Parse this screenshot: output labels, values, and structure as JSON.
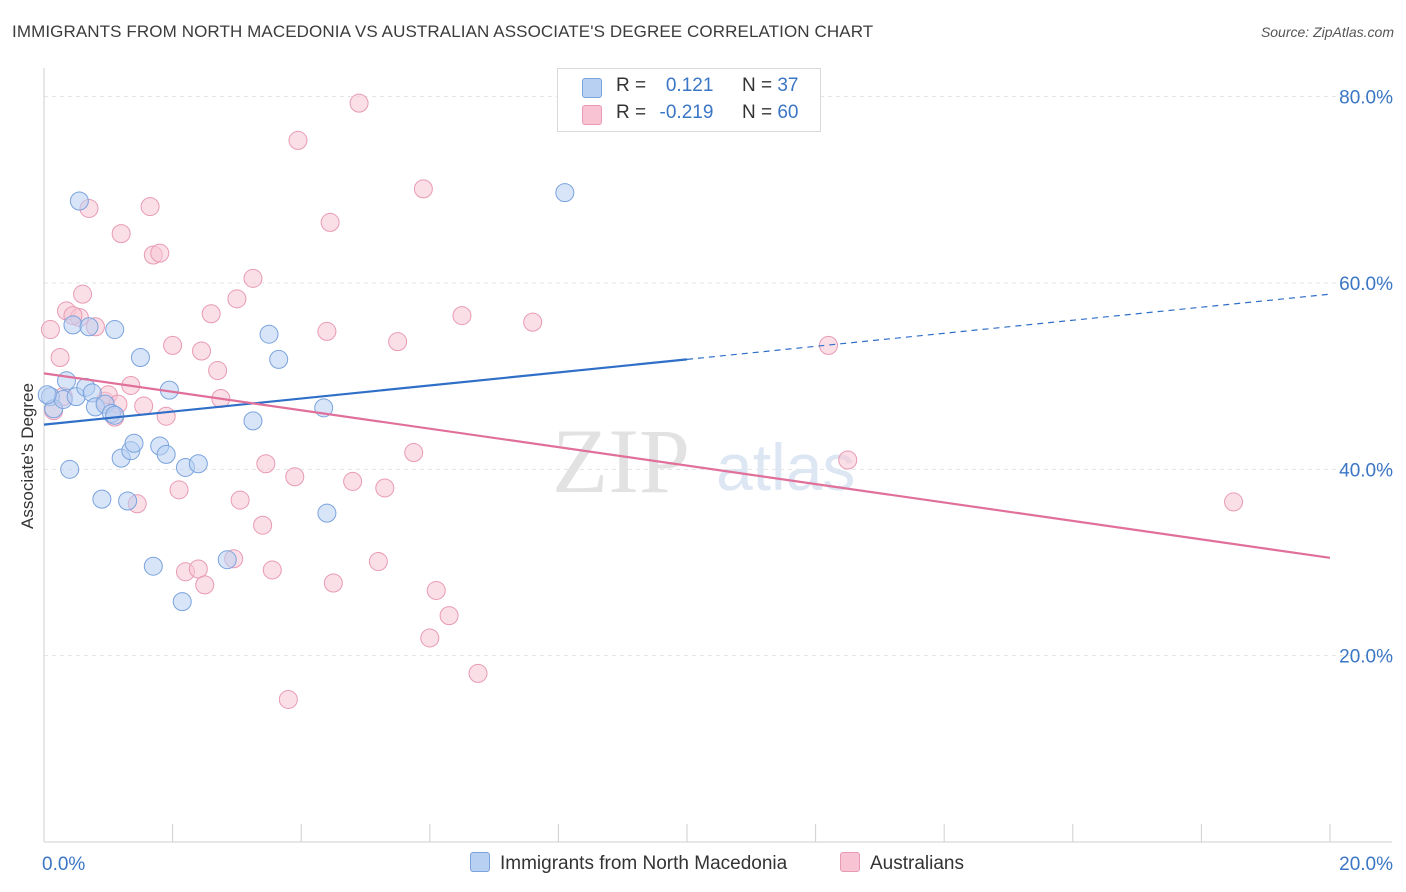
{
  "header": {
    "title": "IMMIGRANTS FROM NORTH MACEDONIA VS AUSTRALIAN ASSOCIATE'S DEGREE CORRELATION CHART",
    "source": "Source: ZipAtlas.com"
  },
  "watermark": {
    "zip": "ZIP",
    "atlas": "atlas"
  },
  "legend": {
    "r_label": "R =",
    "n_label": "N =",
    "rows": [
      {
        "r": "0.121",
        "n": "37",
        "color": "#b8d0f2",
        "border": "#7aa3dd"
      },
      {
        "r": "-0.219",
        "n": "60",
        "color": "#f8c4d4",
        "border": "#e89ab4"
      }
    ]
  },
  "chart_data": {
    "type": "scatter",
    "title": "IMMIGRANTS FROM NORTH MACEDONIA VS AUSTRALIAN ASSOCIATE'S DEGREE CORRELATION CHART",
    "xlabel": "",
    "ylabel": "Associate's Degree",
    "xlim": [
      0,
      20
    ],
    "ylim": [
      0,
      82
    ],
    "x_tick_labels": [
      {
        "value": 0,
        "label": "0.0%"
      },
      {
        "value": 20,
        "label": "20.0%"
      }
    ],
    "y_tick_labels": [
      {
        "value": 20,
        "label": "20.0%"
      },
      {
        "value": 40,
        "label": "40.0%"
      },
      {
        "value": 60,
        "label": "60.0%"
      },
      {
        "value": 80,
        "label": "80.0%"
      }
    ],
    "grid": true,
    "legend_position": "bottom-center",
    "series": [
      {
        "name": "Immigrants from North Macedonia",
        "color": "#7aa3dd",
        "fill": "#b8d0f2",
        "line_color": "#2f6fc8",
        "trend": {
          "x0": 0,
          "y0": 44.8,
          "x1": 10,
          "y1": 51.8,
          "x_dash_end": 20,
          "y_dash_end": 58.8
        },
        "points": [
          {
            "x": 0.1,
            "y": 47.8
          },
          {
            "x": 0.15,
            "y": 46.5
          },
          {
            "x": 0.3,
            "y": 47.5
          },
          {
            "x": 0.35,
            "y": 49.5
          },
          {
            "x": 0.4,
            "y": 40.0
          },
          {
            "x": 0.45,
            "y": 55.5
          },
          {
            "x": 0.5,
            "y": 47.8
          },
          {
            "x": 0.55,
            "y": 68.8
          },
          {
            "x": 0.65,
            "y": 48.8
          },
          {
            "x": 0.7,
            "y": 55.3
          },
          {
            "x": 0.75,
            "y": 48.2
          },
          {
            "x": 0.8,
            "y": 46.7
          },
          {
            "x": 0.9,
            "y": 36.8
          },
          {
            "x": 0.95,
            "y": 47.0
          },
          {
            "x": 1.05,
            "y": 46.0
          },
          {
            "x": 1.1,
            "y": 45.8
          },
          {
            "x": 1.1,
            "y": 55.0
          },
          {
            "x": 1.2,
            "y": 41.2
          },
          {
            "x": 1.3,
            "y": 36.6
          },
          {
            "x": 1.35,
            "y": 42.0
          },
          {
            "x": 1.4,
            "y": 42.8
          },
          {
            "x": 1.5,
            "y": 52.0
          },
          {
            "x": 1.7,
            "y": 29.6
          },
          {
            "x": 1.8,
            "y": 42.5
          },
          {
            "x": 1.9,
            "y": 41.6
          },
          {
            "x": 1.95,
            "y": 48.5
          },
          {
            "x": 2.15,
            "y": 25.8
          },
          {
            "x": 2.2,
            "y": 40.2
          },
          {
            "x": 2.4,
            "y": 40.6
          },
          {
            "x": 2.85,
            "y": 30.3
          },
          {
            "x": 3.25,
            "y": 45.2
          },
          {
            "x": 3.5,
            "y": 54.5
          },
          {
            "x": 3.65,
            "y": 51.8
          },
          {
            "x": 4.35,
            "y": 46.6
          },
          {
            "x": 4.4,
            "y": 35.3
          },
          {
            "x": 8.1,
            "y": 69.7
          },
          {
            "x": 0.05,
            "y": 48.0
          }
        ]
      },
      {
        "name": "Australians",
        "color": "#e89ab4",
        "fill": "#f8c4d4",
        "line_color": "#e0709a",
        "trend": {
          "x0": 0,
          "y0": 50.3,
          "x1": 20,
          "y1": 30.5
        },
        "points": [
          {
            "x": 0.1,
            "y": 55.0
          },
          {
            "x": 0.15,
            "y": 46.3
          },
          {
            "x": 0.25,
            "y": 52.0
          },
          {
            "x": 0.3,
            "y": 47.8
          },
          {
            "x": 0.35,
            "y": 57.0
          },
          {
            "x": 0.55,
            "y": 56.3
          },
          {
            "x": 0.6,
            "y": 58.8
          },
          {
            "x": 0.7,
            "y": 68.0
          },
          {
            "x": 0.8,
            "y": 55.3
          },
          {
            "x": 0.95,
            "y": 47.3
          },
          {
            "x": 1.0,
            "y": 48.0
          },
          {
            "x": 1.1,
            "y": 45.6
          },
          {
            "x": 1.2,
            "y": 65.3
          },
          {
            "x": 1.35,
            "y": 49.0
          },
          {
            "x": 1.45,
            "y": 36.3
          },
          {
            "x": 1.55,
            "y": 46.8
          },
          {
            "x": 1.65,
            "y": 68.2
          },
          {
            "x": 1.7,
            "y": 63.0
          },
          {
            "x": 1.8,
            "y": 63.2
          },
          {
            "x": 1.9,
            "y": 45.7
          },
          {
            "x": 2.0,
            "y": 53.3
          },
          {
            "x": 2.1,
            "y": 37.8
          },
          {
            "x": 2.2,
            "y": 29.0
          },
          {
            "x": 2.4,
            "y": 29.3
          },
          {
            "x": 2.45,
            "y": 52.7
          },
          {
            "x": 2.5,
            "y": 27.6
          },
          {
            "x": 2.6,
            "y": 56.7
          },
          {
            "x": 2.7,
            "y": 50.6
          },
          {
            "x": 2.75,
            "y": 47.6
          },
          {
            "x": 2.95,
            "y": 30.4
          },
          {
            "x": 3.0,
            "y": 58.3
          },
          {
            "x": 3.05,
            "y": 36.7
          },
          {
            "x": 3.25,
            "y": 60.5
          },
          {
            "x": 3.4,
            "y": 34.0
          },
          {
            "x": 3.45,
            "y": 40.6
          },
          {
            "x": 3.55,
            "y": 29.2
          },
          {
            "x": 3.8,
            "y": 15.3
          },
          {
            "x": 3.9,
            "y": 39.2
          },
          {
            "x": 3.95,
            "y": 75.3
          },
          {
            "x": 4.4,
            "y": 54.8
          },
          {
            "x": 4.45,
            "y": 66.5
          },
          {
            "x": 4.5,
            "y": 27.8
          },
          {
            "x": 4.8,
            "y": 38.7
          },
          {
            "x": 4.9,
            "y": 79.3
          },
          {
            "x": 5.2,
            "y": 30.1
          },
          {
            "x": 5.3,
            "y": 38.0
          },
          {
            "x": 5.5,
            "y": 53.7
          },
          {
            "x": 5.75,
            "y": 41.8
          },
          {
            "x": 5.9,
            "y": 70.1
          },
          {
            "x": 6.0,
            "y": 21.9
          },
          {
            "x": 6.1,
            "y": 27.0
          },
          {
            "x": 6.3,
            "y": 24.3
          },
          {
            "x": 6.5,
            "y": 56.5
          },
          {
            "x": 6.75,
            "y": 18.1
          },
          {
            "x": 7.6,
            "y": 55.8
          },
          {
            "x": 12.2,
            "y": 53.3
          },
          {
            "x": 12.5,
            "y": 41.0
          },
          {
            "x": 18.5,
            "y": 36.5
          },
          {
            "x": 1.15,
            "y": 47.0
          },
          {
            "x": 0.45,
            "y": 56.5
          }
        ]
      }
    ]
  }
}
